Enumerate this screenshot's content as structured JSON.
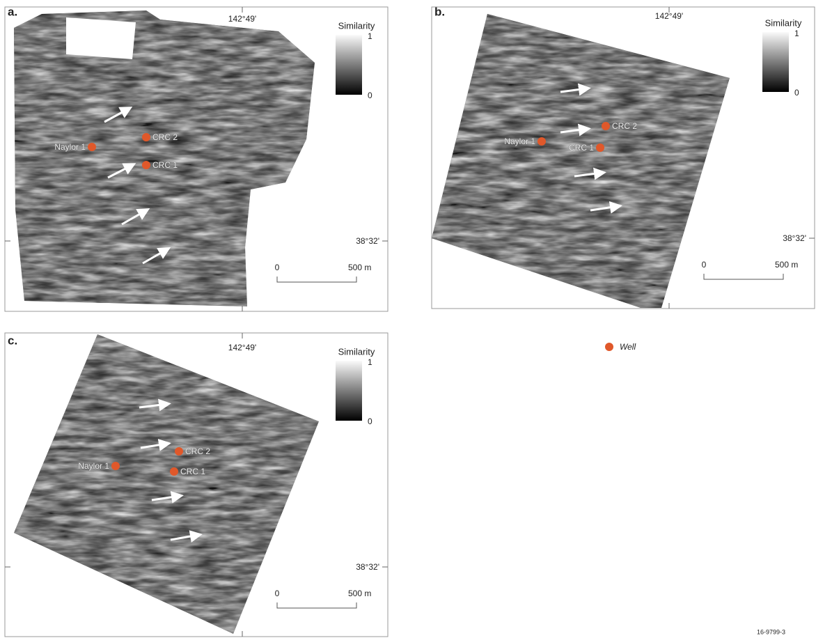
{
  "panels": [
    {
      "label": "a.",
      "longitude": "142°49'",
      "latitude": "38°32'",
      "colorbar": {
        "title": "Similarity",
        "max": "1",
        "min": "0"
      },
      "scale": {
        "start": "0",
        "end": "500 m"
      },
      "wells": [
        {
          "name": "Naylor 1"
        },
        {
          "name": "CRC 2"
        },
        {
          "name": "CRC 1"
        }
      ]
    },
    {
      "label": "b.",
      "longitude": "142°49'",
      "latitude": "38°32'",
      "colorbar": {
        "title": "Similarity",
        "max": "1",
        "min": "0"
      },
      "scale": {
        "start": "0",
        "end": "500 m"
      },
      "wells": [
        {
          "name": "Naylor 1"
        },
        {
          "name": "CRC 2"
        },
        {
          "name": "CRC 1"
        }
      ]
    },
    {
      "label": "c.",
      "longitude": "142°49'",
      "latitude": "38°32'",
      "colorbar": {
        "title": "Similarity",
        "max": "1",
        "min": "0"
      },
      "scale": {
        "start": "0",
        "end": "500 m"
      },
      "wells": [
        {
          "name": "Naylor 1"
        },
        {
          "name": "CRC 2"
        },
        {
          "name": "CRC 1"
        }
      ]
    }
  ],
  "legend": {
    "label": "Well"
  },
  "figure_id": "16-9799-3"
}
